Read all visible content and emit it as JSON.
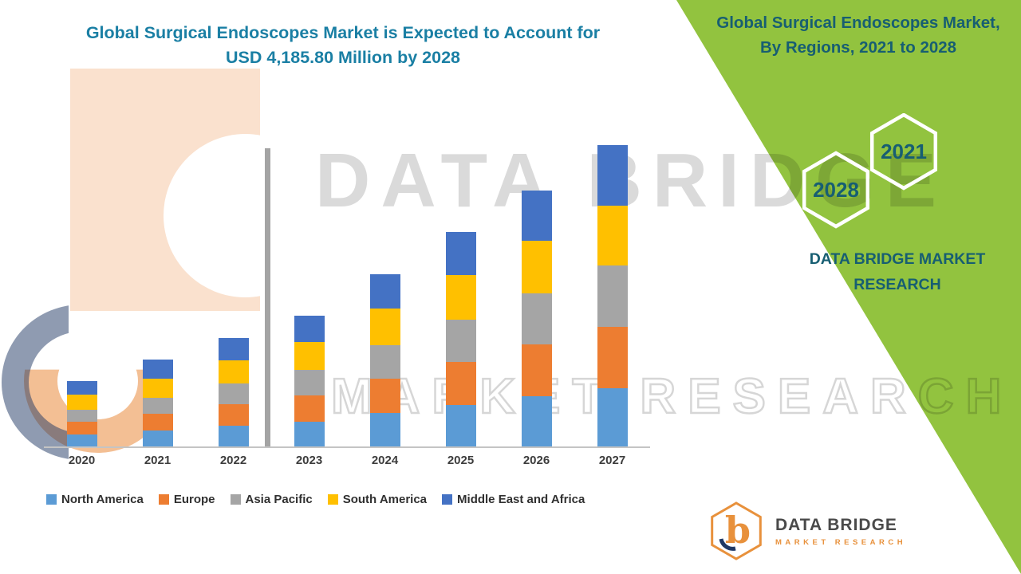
{
  "title": {
    "line1": "Global Surgical Endoscopes Market is Expected to Account for",
    "line2": "USD 4,185.80 Million by 2028",
    "color": "#1A7FA4"
  },
  "side_panel": {
    "bg_color": "#92C33F",
    "text_color": "#175E72",
    "heading_line1": "Global Surgical Endoscopes Market,",
    "heading_line2": "By Regions, 2021 to 2028",
    "hexagon_back_year": "2028",
    "hexagon_front_year": "2021",
    "brand_line1": "DATA BRIDGE MARKET",
    "brand_line2": "RESEARCH"
  },
  "watermark": {
    "line1": "DATA BRIDGE",
    "line2": "MARKET RESEARCH"
  },
  "footer_logo": {
    "monogram": "b",
    "brand": "DATA BRIDGE",
    "tagline": "MARKET RESEARCH"
  },
  "chart_data": {
    "type": "bar",
    "stacked": true,
    "title": "Global Surgical Endoscopes Market is Expected to Account for USD 4,185.80 Million by 2028",
    "xlabel": "",
    "ylabel": "",
    "unit": "USD Million (estimated from bar heights; no value axis shown)",
    "y_axis_visible": false,
    "grid": false,
    "legend_position": "bottom",
    "categories": [
      "2020",
      "2021",
      "2022",
      "2023",
      "2024",
      "2025",
      "2026",
      "2027"
    ],
    "series": [
      {
        "name": "North America",
        "color": "#5B9BD5",
        "values": [
          160,
          210,
          275,
          330,
          445,
          550,
          670,
          775
        ]
      },
      {
        "name": "Europe",
        "color": "#ED7D31",
        "values": [
          170,
          220,
          285,
          350,
          455,
          570,
          690,
          815
        ]
      },
      {
        "name": "Asia Pacific",
        "color": "#A5A5A5",
        "values": [
          160,
          210,
          275,
          340,
          445,
          560,
          680,
          815
        ]
      },
      {
        "name": "South America",
        "color": "#FFC000",
        "values": [
          200,
          255,
          310,
          370,
          490,
          595,
          700,
          795
        ]
      },
      {
        "name": "Middle East and Africa",
        "color": "#4472C4",
        "values": [
          180,
          250,
          295,
          350,
          455,
          575,
          670,
          800
        ]
      }
    ],
    "totals": [
      870,
      1145,
      1440,
      1740,
      2290,
      2850,
      3410,
      4000
    ]
  }
}
